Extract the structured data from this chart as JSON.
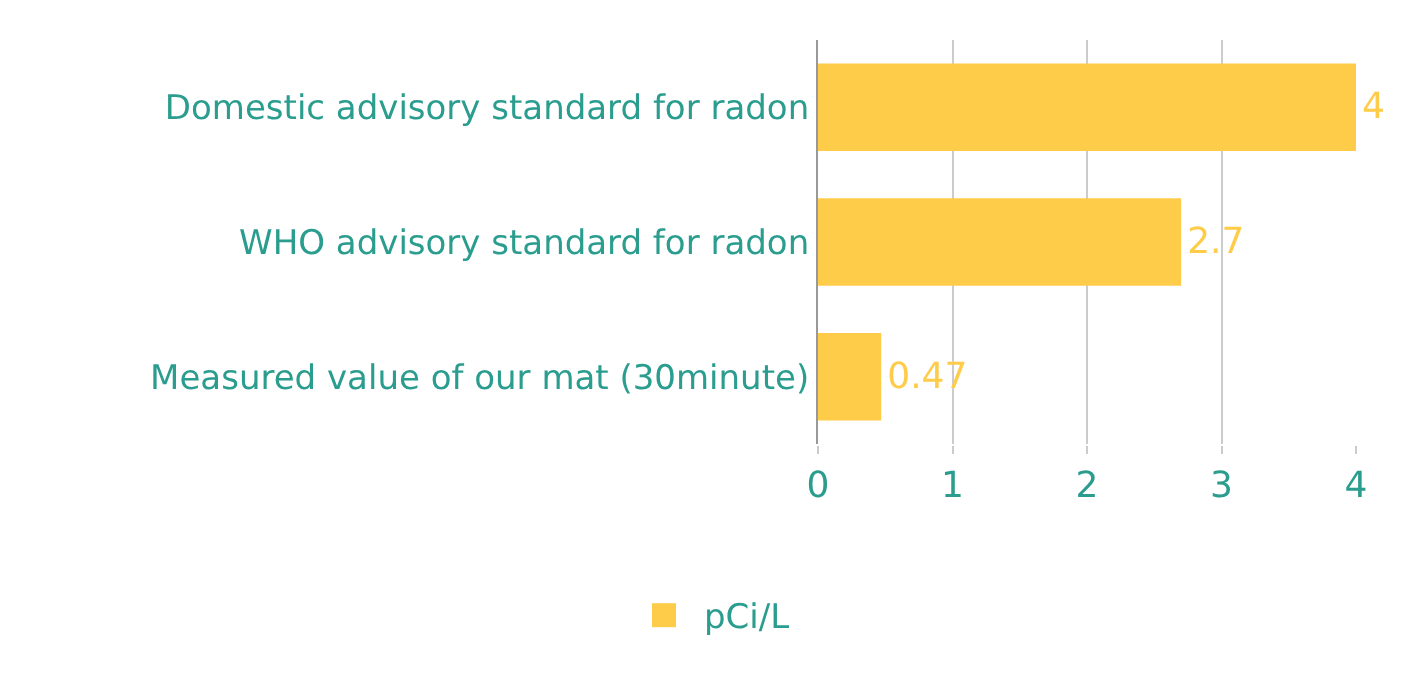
{
  "chart_data": {
    "type": "bar",
    "orientation": "horizontal",
    "categories": [
      "Domestic advisory standard for radon",
      "WHO advisory standard for radon",
      "Measured value of our mat (30minute)"
    ],
    "series": [
      {
        "name": "pCi/L",
        "color": "#ffcc4a",
        "values": [
          4,
          2.7,
          0.47
        ]
      }
    ],
    "xlim": [
      0,
      4
    ],
    "xticks": [
      0,
      1,
      2,
      3,
      4
    ],
    "grid": "x",
    "legend": "bottom",
    "data_labels": true
  }
}
